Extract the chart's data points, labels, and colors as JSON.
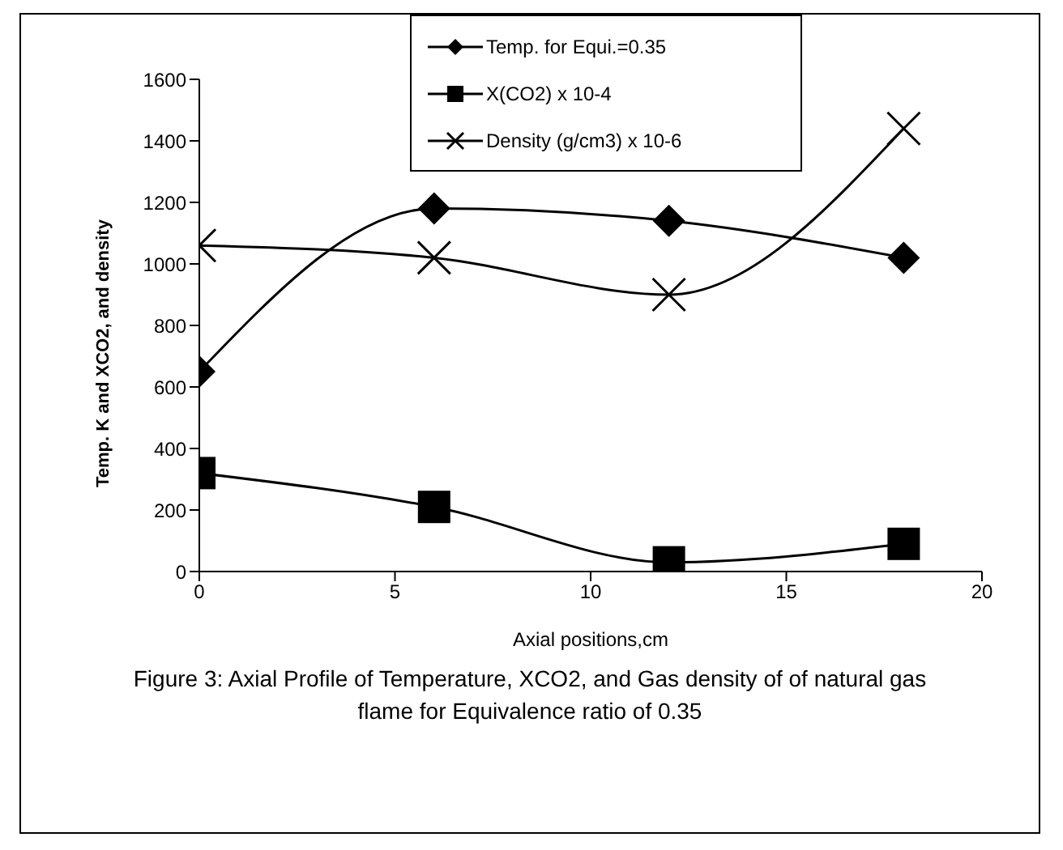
{
  "chart_data": {
    "type": "line",
    "xlabel": "Axial positions,cm",
    "ylabel": "Temp. K and XCO2, and density",
    "x": [
      0,
      6,
      12,
      18
    ],
    "series": [
      {
        "name": "Temp. for Equi.=0.35",
        "color": "#000000",
        "marker": "diamond",
        "values": [
          650,
          1180,
          1140,
          1020
        ]
      },
      {
        "name": "X(CO2) x 10-4",
        "color": "#000000",
        "marker": "square",
        "values": [
          320,
          210,
          30,
          90
        ]
      },
      {
        "name": "Density (g/cm3) x 10-6",
        "color": "#000000",
        "marker": "cross",
        "values": [
          1060,
          1020,
          900,
          1440
        ]
      }
    ],
    "xlim": [
      0,
      20
    ],
    "xticks": [
      0,
      5,
      10,
      15,
      20
    ],
    "ylim": [
      0,
      1600
    ],
    "yticks": [
      0,
      200,
      400,
      600,
      800,
      1000,
      1200,
      1400,
      1600
    ],
    "grid": false,
    "legend": "top right",
    "line_style": "solid",
    "annotations": [
      "Figure 3: Axial Profile of Temperature, XCO2, and Gas density of of natural gas flame for Equivalence ratio of 0.35"
    ]
  }
}
